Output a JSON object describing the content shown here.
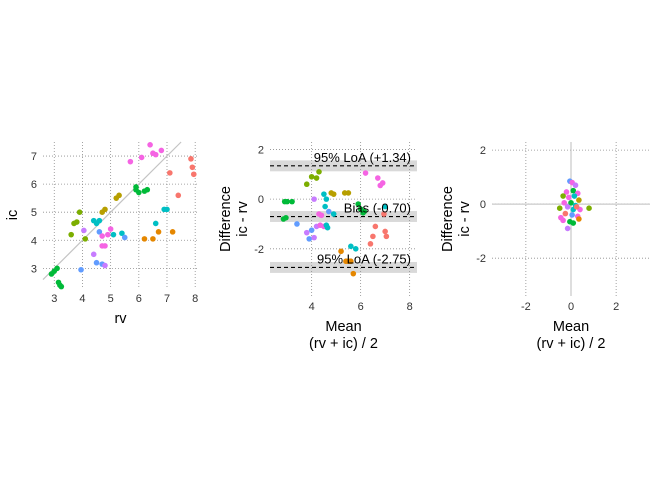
{
  "chart_data": [
    {
      "type": "scatter",
      "xlabel": "rv",
      "ylabel": "ic",
      "xlim": [
        2.6,
        8.1
      ],
      "ylim": [
        2.3,
        7.5
      ],
      "xticks": [
        "3",
        "4",
        "5",
        "6",
        "7",
        "8"
      ],
      "yticks": [
        "3",
        "4",
        "5",
        "6",
        "7"
      ],
      "identity_line": true,
      "grid": "dotted",
      "points": [
        {
          "x": 2.9,
          "y": 2.8,
          "c": "#00BA38"
        },
        {
          "x": 3.0,
          "y": 2.9,
          "c": "#00BA38"
        },
        {
          "x": 3.1,
          "y": 3.0,
          "c": "#00BA38"
        },
        {
          "x": 3.2,
          "y": 2.4,
          "c": "#00BA38"
        },
        {
          "x": 3.15,
          "y": 2.5,
          "c": "#00BA38"
        },
        {
          "x": 3.25,
          "y": 2.35,
          "c": "#00BA38"
        },
        {
          "x": 3.6,
          "y": 4.2,
          "c": "#7CAE00"
        },
        {
          "x": 3.7,
          "y": 4.6,
          "c": "#7CAE00"
        },
        {
          "x": 3.8,
          "y": 4.65,
          "c": "#7CAE00"
        },
        {
          "x": 3.9,
          "y": 5.0,
          "c": "#7CAE00"
        },
        {
          "x": 4.05,
          "y": 4.35,
          "c": "#C77CFF"
        },
        {
          "x": 4.1,
          "y": 4.05,
          "c": "#7CAE00"
        },
        {
          "x": 3.95,
          "y": 2.95,
          "c": "#619CFF"
        },
        {
          "x": 4.4,
          "y": 4.7,
          "c": "#00BFC4"
        },
        {
          "x": 4.5,
          "y": 4.6,
          "c": "#00BFC4"
        },
        {
          "x": 4.6,
          "y": 4.3,
          "c": "#619CFF"
        },
        {
          "x": 4.4,
          "y": 3.5,
          "c": "#C77CFF"
        },
        {
          "x": 4.5,
          "y": 3.2,
          "c": "#619CFF"
        },
        {
          "x": 4.7,
          "y": 3.15,
          "c": "#619CFF"
        },
        {
          "x": 4.8,
          "y": 3.1,
          "c": "#C77CFF"
        },
        {
          "x": 4.7,
          "y": 3.8,
          "c": "#F564E3"
        },
        {
          "x": 4.8,
          "y": 3.8,
          "c": "#F564E3"
        },
        {
          "x": 4.7,
          "y": 4.15,
          "c": "#F564E3"
        },
        {
          "x": 4.9,
          "y": 4.2,
          "c": "#F564E3"
        },
        {
          "x": 4.7,
          "y": 5.0,
          "c": "#B79F00"
        },
        {
          "x": 4.8,
          "y": 5.1,
          "c": "#B79F00"
        },
        {
          "x": 4.6,
          "y": 4.7,
          "c": "#00BFC4"
        },
        {
          "x": 5.0,
          "y": 4.4,
          "c": "#F564E3"
        },
        {
          "x": 5.1,
          "y": 4.2,
          "c": "#00BFC4"
        },
        {
          "x": 5.2,
          "y": 5.5,
          "c": "#B79F00"
        },
        {
          "x": 5.3,
          "y": 5.6,
          "c": "#B79F00"
        },
        {
          "x": 5.4,
          "y": 4.25,
          "c": "#00BFC4"
        },
        {
          "x": 5.5,
          "y": 4.1,
          "c": "#619CFF"
        },
        {
          "x": 5.7,
          "y": 6.8,
          "c": "#F564E3"
        },
        {
          "x": 5.9,
          "y": 5.8,
          "c": "#00BA38"
        },
        {
          "x": 5.9,
          "y": 5.9,
          "c": "#00BA38"
        },
        {
          "x": 6.0,
          "y": 5.7,
          "c": "#00BA38"
        },
        {
          "x": 6.2,
          "y": 5.75,
          "c": "#00BA38"
        },
        {
          "x": 6.3,
          "y": 5.8,
          "c": "#00BA38"
        },
        {
          "x": 6.1,
          "y": 6.95,
          "c": "#F564E3"
        },
        {
          "x": 6.4,
          "y": 7.4,
          "c": "#F564E3"
        },
        {
          "x": 6.5,
          "y": 7.1,
          "c": "#F564E3"
        },
        {
          "x": 6.6,
          "y": 7.05,
          "c": "#F564E3"
        },
        {
          "x": 6.8,
          "y": 7.2,
          "c": "#F564E3"
        },
        {
          "x": 6.2,
          "y": 4.05,
          "c": "#E58700"
        },
        {
          "x": 6.5,
          "y": 4.05,
          "c": "#E58700"
        },
        {
          "x": 6.7,
          "y": 4.3,
          "c": "#E58700"
        },
        {
          "x": 6.6,
          "y": 4.6,
          "c": "#00BFC4"
        },
        {
          "x": 6.9,
          "y": 5.1,
          "c": "#00BFC4"
        },
        {
          "x": 7.0,
          "y": 5.1,
          "c": "#00BFC4"
        },
        {
          "x": 7.1,
          "y": 6.4,
          "c": "#F8766D"
        },
        {
          "x": 7.2,
          "y": 4.3,
          "c": "#E58700"
        },
        {
          "x": 7.4,
          "y": 5.6,
          "c": "#F8766D"
        },
        {
          "x": 7.85,
          "y": 6.9,
          "c": "#F8766D"
        },
        {
          "x": 7.9,
          "y": 6.6,
          "c": "#F8766D"
        },
        {
          "x": 7.95,
          "y": 6.35,
          "c": "#F8766D"
        }
      ]
    },
    {
      "type": "scatter",
      "xlabel": "Mean\n(rv + ic) / 2",
      "ylabel": "Difference\nic - rv",
      "xlim": [
        2.3,
        8.3
      ],
      "ylim": [
        -3.9,
        2.3
      ],
      "xticks": [
        "4",
        "6",
        "8"
      ],
      "xtick_values": [
        4,
        6,
        8
      ],
      "yticks": [
        "-2",
        "0",
        "2"
      ],
      "ytick_values": [
        -2,
        0,
        2
      ],
      "bias": -0.7,
      "loa_upper": 1.34,
      "loa_lower": -2.75,
      "bias_label": "Bias (-0.70)",
      "upper_label": "95% LoA (+1.34)",
      "lower_label": "95% LoA (-2.75)",
      "grid": "dotted",
      "points": [
        {
          "x": 2.9,
          "y": -0.1,
          "c": "#00BA38"
        },
        {
          "x": 3.0,
          "y": -0.1,
          "c": "#00BA38"
        },
        {
          "x": 3.2,
          "y": -0.1,
          "c": "#00BA38"
        },
        {
          "x": 2.85,
          "y": -0.8,
          "c": "#00BA38"
        },
        {
          "x": 2.95,
          "y": -0.75,
          "c": "#00BA38"
        },
        {
          "x": 3.4,
          "y": -1.0,
          "c": "#619CFF"
        },
        {
          "x": 3.8,
          "y": 0.6,
          "c": "#7CAE00"
        },
        {
          "x": 4.0,
          "y": 0.9,
          "c": "#7CAE00"
        },
        {
          "x": 4.2,
          "y": 0.85,
          "c": "#7CAE00"
        },
        {
          "x": 4.3,
          "y": 1.1,
          "c": "#7CAE00"
        },
        {
          "x": 3.8,
          "y": -1.35,
          "c": "#C77CFF"
        },
        {
          "x": 4.0,
          "y": -1.25,
          "c": "#619CFF"
        },
        {
          "x": 3.9,
          "y": -1.6,
          "c": "#619CFF"
        },
        {
          "x": 4.1,
          "y": -1.55,
          "c": "#C77CFF"
        },
        {
          "x": 4.2,
          "y": -1.1,
          "c": "#C77CFF"
        },
        {
          "x": 4.1,
          "y": 0.0,
          "c": "#C77CFF"
        },
        {
          "x": 4.3,
          "y": -0.6,
          "c": "#F564E3"
        },
        {
          "x": 4.35,
          "y": -1.05,
          "c": "#F564E3"
        },
        {
          "x": 4.4,
          "y": -0.65,
          "c": "#F564E3"
        },
        {
          "x": 4.5,
          "y": -1.1,
          "c": "#F564E3"
        },
        {
          "x": 4.5,
          "y": 0.2,
          "c": "#00BFC4"
        },
        {
          "x": 4.6,
          "y": 0.0,
          "c": "#00BFC4"
        },
        {
          "x": 4.55,
          "y": -0.3,
          "c": "#00BFC4"
        },
        {
          "x": 4.7,
          "y": -0.5,
          "c": "#619CFF"
        },
        {
          "x": 4.6,
          "y": -1.05,
          "c": "#00BFC4"
        },
        {
          "x": 4.65,
          "y": -1.15,
          "c": "#00BFC4"
        },
        {
          "x": 4.8,
          "y": 0.25,
          "c": "#B79F00"
        },
        {
          "x": 4.9,
          "y": 0.2,
          "c": "#B79F00"
        },
        {
          "x": 4.9,
          "y": -0.6,
          "c": "#00BFC4"
        },
        {
          "x": 5.2,
          "y": -2.1,
          "c": "#E58700"
        },
        {
          "x": 5.35,
          "y": 0.25,
          "c": "#B79F00"
        },
        {
          "x": 5.5,
          "y": 0.25,
          "c": "#B79F00"
        },
        {
          "x": 5.4,
          "y": -2.5,
          "c": "#E58700"
        },
        {
          "x": 5.5,
          "y": -2.5,
          "c": "#E58700"
        },
        {
          "x": 5.6,
          "y": -2.5,
          "c": "#E58700"
        },
        {
          "x": 5.6,
          "y": -1.9,
          "c": "#00BFC4"
        },
        {
          "x": 5.7,
          "y": -3.0,
          "c": "#E58700"
        },
        {
          "x": 5.8,
          "y": -2.0,
          "c": "#00BFC4"
        },
        {
          "x": 5.9,
          "y": -0.2,
          "c": "#00BA38"
        },
        {
          "x": 6.0,
          "y": -0.4,
          "c": "#00BA38"
        },
        {
          "x": 6.1,
          "y": -0.55,
          "c": "#00BA38"
        },
        {
          "x": 6.15,
          "y": -0.5,
          "c": "#00BA38"
        },
        {
          "x": 6.2,
          "y": 1.05,
          "c": "#F564E3"
        },
        {
          "x": 6.4,
          "y": -1.8,
          "c": "#F8766D"
        },
        {
          "x": 6.5,
          "y": -1.5,
          "c": "#F8766D"
        },
        {
          "x": 6.6,
          "y": -1.1,
          "c": "#F8766D"
        },
        {
          "x": 6.7,
          "y": 0.85,
          "c": "#F564E3"
        },
        {
          "x": 6.8,
          "y": 0.55,
          "c": "#F564E3"
        },
        {
          "x": 6.9,
          "y": 0.65,
          "c": "#F564E3"
        },
        {
          "x": 7.0,
          "y": -0.3,
          "c": "#00BFC4"
        },
        {
          "x": 6.95,
          "y": -0.6,
          "c": "#F8766D"
        },
        {
          "x": 7.0,
          "y": -1.3,
          "c": "#F8766D"
        },
        {
          "x": 7.05,
          "y": -1.5,
          "c": "#F8766D"
        }
      ]
    },
    {
      "type": "scatter",
      "xlabel": "Mean\n(rv + ic) / 2",
      "ylabel": "Difference\nic - rv",
      "xlim": [
        -3.5,
        3.5
      ],
      "ylim": [
        -3.4,
        2.3
      ],
      "xticks": [
        "-2",
        "0",
        "2"
      ],
      "xtick_values": [
        -2,
        0,
        2
      ],
      "yticks": [
        "-2",
        "0",
        "2"
      ],
      "ytick_values": [
        -2,
        0,
        2
      ],
      "zero_lines": true,
      "grid": "dotted",
      "points": [
        {
          "x": -0.05,
          "y": 0.85,
          "c": "#619CFF"
        },
        {
          "x": 0.05,
          "y": 0.8,
          "c": "#F564E3"
        },
        {
          "x": 0.2,
          "y": 0.7,
          "c": "#C77CFF"
        },
        {
          "x": -0.2,
          "y": 0.45,
          "c": "#F564E3"
        },
        {
          "x": 0.1,
          "y": 0.5,
          "c": "#00BA38"
        },
        {
          "x": 0.3,
          "y": 0.4,
          "c": "#F564E3"
        },
        {
          "x": -0.35,
          "y": 0.3,
          "c": "#7CAE00"
        },
        {
          "x": -0.1,
          "y": 0.25,
          "c": "#F564E3"
        },
        {
          "x": 0.15,
          "y": 0.3,
          "c": "#00BFC4"
        },
        {
          "x": 0.35,
          "y": 0.15,
          "c": "#B79F00"
        },
        {
          "x": -0.3,
          "y": 0.05,
          "c": "#F564E3"
        },
        {
          "x": 0.0,
          "y": 0.05,
          "c": "#00BA38"
        },
        {
          "x": 0.2,
          "y": -0.05,
          "c": "#00BFC4"
        },
        {
          "x": -0.15,
          "y": -0.1,
          "c": "#C77CFF"
        },
        {
          "x": 0.1,
          "y": -0.2,
          "c": "#00BFC4"
        },
        {
          "x": 0.4,
          "y": -0.2,
          "c": "#F564E3"
        },
        {
          "x": -0.5,
          "y": -0.15,
          "c": "#7CAE00"
        },
        {
          "x": 0.8,
          "y": -0.15,
          "c": "#7CAE00"
        },
        {
          "x": -0.25,
          "y": -0.35,
          "c": "#F8766D"
        },
        {
          "x": 0.05,
          "y": -0.4,
          "c": "#619CFF"
        },
        {
          "x": 0.3,
          "y": -0.45,
          "c": "#F564E3"
        },
        {
          "x": -0.45,
          "y": -0.5,
          "c": "#F564E3"
        },
        {
          "x": -0.35,
          "y": -0.6,
          "c": "#F564E3"
        },
        {
          "x": -0.05,
          "y": -0.65,
          "c": "#00BA38"
        },
        {
          "x": 0.1,
          "y": -0.7,
          "c": "#00BA38"
        },
        {
          "x": 0.35,
          "y": -0.55,
          "c": "#E58700"
        },
        {
          "x": -0.15,
          "y": -0.9,
          "c": "#C77CFF"
        },
        {
          "x": 0.25,
          "y": -0.1,
          "c": "#F8766D"
        }
      ]
    }
  ]
}
